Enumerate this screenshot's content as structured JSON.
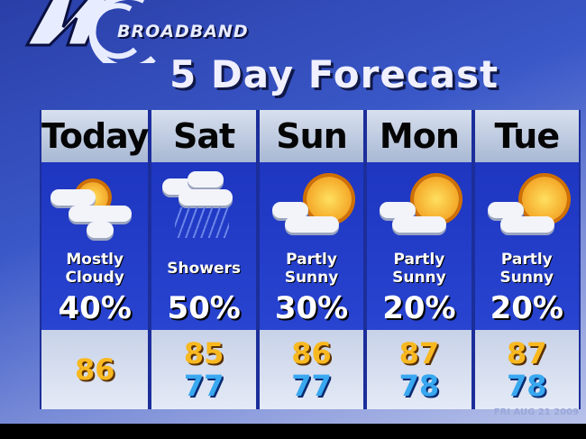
{
  "logo": {
    "brand": "BROADBAND"
  },
  "title": "5 Day Forecast",
  "days": [
    {
      "name": "Today",
      "icon": "mostly-cloudy-icon",
      "condition": "Mostly Cloudy",
      "precip": "40%",
      "high": "86",
      "low": ""
    },
    {
      "name": "Sat",
      "icon": "showers-icon",
      "condition": "Showers",
      "precip": "50%",
      "high": "85",
      "low": "77"
    },
    {
      "name": "Sun",
      "icon": "partly-sunny-icon",
      "condition": "Partly Sunny",
      "precip": "30%",
      "high": "86",
      "low": "77"
    },
    {
      "name": "Mon",
      "icon": "partly-sunny-icon",
      "condition": "Partly Sunny",
      "precip": "20%",
      "high": "87",
      "low": "78"
    },
    {
      "name": "Tue",
      "icon": "partly-sunny-icon",
      "condition": "Partly Sunny",
      "precip": "20%",
      "high": "87",
      "low": "78"
    }
  ],
  "footer": "FRI AUG 21 2009",
  "colors": {
    "high": "#f8b820",
    "low": "#38a8f0",
    "panel": "#2844d0"
  }
}
